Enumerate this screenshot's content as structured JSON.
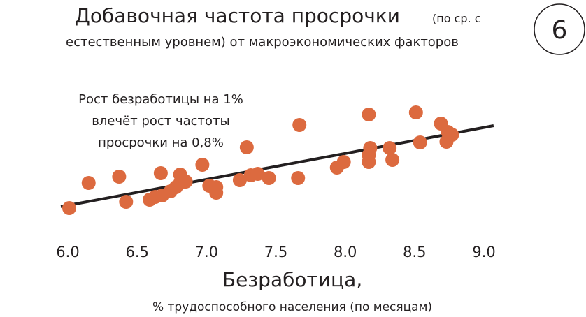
{
  "chart_data": {
    "type": "scatter",
    "title": "Добавочная частота просрочки",
    "title_note": "(по ср. с",
    "subtitle": "естественным уровнем) от макроэкономических факторов",
    "badge": "6",
    "annotation": [
      "Рост безработицы на 1%",
      "влечёт рост частоты",
      "просрочки на 0,8%"
    ],
    "x_label": "Безработица,",
    "x_sublabel": "% трудоспособного населения (по месяцам)",
    "color": "#dc6a3f",
    "trend": {
      "x": [
        5.95,
        9.07
      ],
      "values": [
        1.2,
        7.0
      ],
      "color": "#231f20"
    },
    "x": [
      6.01,
      6.15,
      6.37,
      6.42,
      6.59,
      6.63,
      6.67,
      6.68,
      6.74,
      6.78,
      6.81,
      6.81,
      6.85,
      6.97,
      7.02,
      7.07,
      7.07,
      7.24,
      7.29,
      7.32,
      7.37,
      7.45,
      7.66,
      7.67,
      7.94,
      7.99,
      8.17,
      8.18,
      8.17,
      8.17,
      8.32,
      8.34,
      8.51,
      8.54,
      8.69,
      8.74,
      8.77,
      8.73
    ],
    "values": [
      1.1,
      2.9,
      3.35,
      1.55,
      1.7,
      1.9,
      3.6,
      2.0,
      2.3,
      2.6,
      3.5,
      2.9,
      3.0,
      4.2,
      2.7,
      2.6,
      2.2,
      3.1,
      5.45,
      3.45,
      3.55,
      3.25,
      3.25,
      7.05,
      4.0,
      4.4,
      7.8,
      5.4,
      4.9,
      4.4,
      5.4,
      4.55,
      7.95,
      5.8,
      7.15,
      6.55,
      6.35,
      5.85
    ],
    "xlim": [
      6,
      9
    ],
    "xticks": [
      {
        "value": 6,
        "label": "6.0"
      },
      6.5,
      {
        "value": 7,
        "label": "7.0"
      },
      7.5,
      {
        "value": 8,
        "label": "8.0"
      },
      8.5,
      {
        "value": 9,
        "label": "9.0"
      }
    ],
    "ylim": [
      0,
      10
    ]
  }
}
